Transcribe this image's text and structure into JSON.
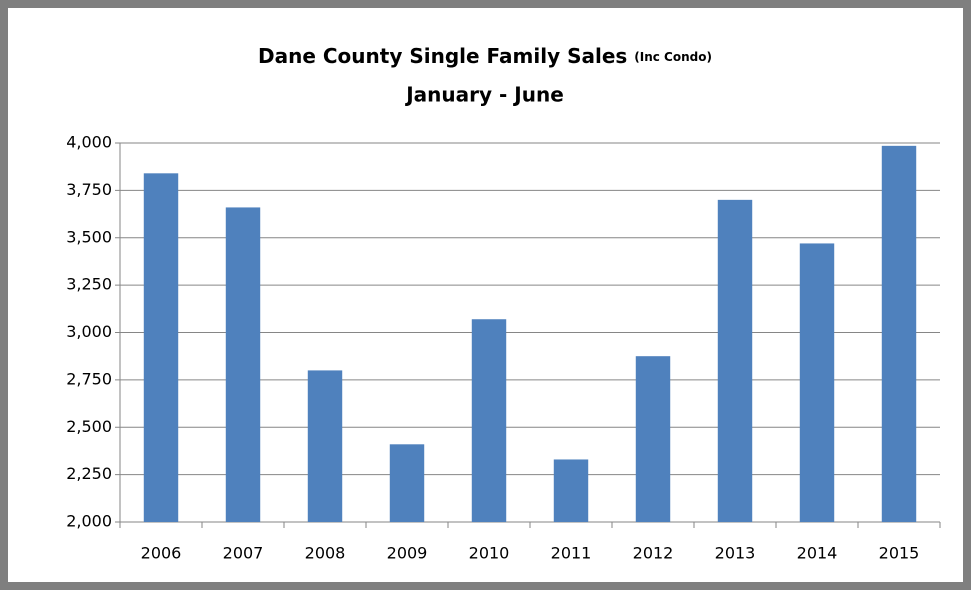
{
  "chart_data": {
    "type": "bar",
    "title": "Dane County Single Family Sales",
    "title_note": "(Inc Condo)",
    "subtitle": "January - June",
    "categories": [
      "2006",
      "2007",
      "2008",
      "2009",
      "2010",
      "2011",
      "2012",
      "2013",
      "2014",
      "2015"
    ],
    "values": [
      3840,
      3660,
      2800,
      2410,
      3070,
      2330,
      2875,
      3700,
      3470,
      3985
    ],
    "color": "#4f81bd",
    "ylim": [
      2000,
      4000
    ],
    "yticks": [
      {
        "value": 2000,
        "label": "2,000"
      },
      {
        "value": 2250,
        "label": "2,250"
      },
      {
        "value": 2500,
        "label": "2,500"
      },
      {
        "value": 2750,
        "label": "2,750"
      },
      {
        "value": 3000,
        "label": "3,000"
      },
      {
        "value": 3250,
        "label": "3,250"
      },
      {
        "value": 3500,
        "label": "3,500"
      },
      {
        "value": 3750,
        "label": "3,750"
      },
      {
        "value": 4000,
        "label": "4,000"
      }
    ],
    "grid": true
  }
}
